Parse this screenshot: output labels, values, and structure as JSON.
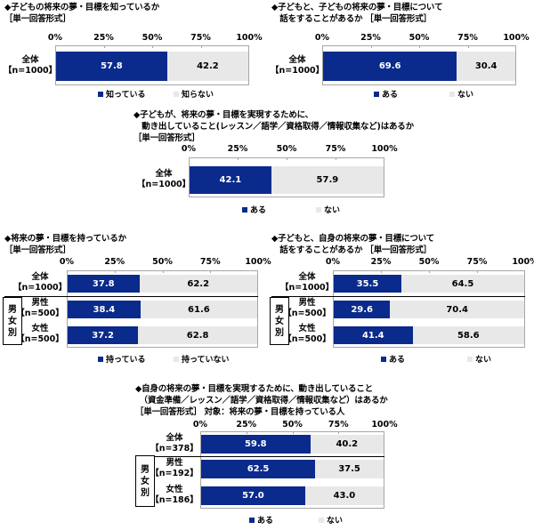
{
  "colors": {
    "series1": "#0a2a8c",
    "series2": "#e8e8e8",
    "axis": "#a6a6a6"
  },
  "axis_ticks": [
    "0%",
    "25%",
    "50%",
    "75%",
    "100%"
  ],
  "chart_data": [
    {
      "type": "bar",
      "orientation": "horizontal-stacked-100",
      "title": "◆子どもの将来の夢・目標を知っているか",
      "subtitle": "［単一回答形式］",
      "categories": [
        "全体【n=1000】"
      ],
      "series": [
        {
          "name": "知っている",
          "values": [
            57.8
          ]
        },
        {
          "name": "知らない",
          "values": [
            42.2
          ]
        }
      ],
      "xlim": [
        0,
        100
      ],
      "xticks": [
        "0%",
        "25%",
        "50%",
        "75%",
        "100%"
      ],
      "legend_position": "bottom"
    },
    {
      "type": "bar",
      "orientation": "horizontal-stacked-100",
      "title": "◆子どもと、子どもの将来の夢・目標について 話をすることがあるか",
      "subtitle": "［単一回答形式］",
      "categories": [
        "全体【n=1000】"
      ],
      "series": [
        {
          "name": "ある",
          "values": [
            69.6
          ]
        },
        {
          "name": "ない",
          "values": [
            30.4
          ]
        }
      ],
      "xlim": [
        0,
        100
      ],
      "xticks": [
        "0%",
        "25%",
        "50%",
        "75%",
        "100%"
      ],
      "legend_position": "bottom"
    },
    {
      "type": "bar",
      "orientation": "horizontal-stacked-100",
      "title": "◆子どもが、将来の夢・目標を実現するために、 動き出していること(レッスン／語学／資格取得／情報収集など)はあるか",
      "subtitle": "［単一回答形式］",
      "categories": [
        "全体【n=1000】"
      ],
      "series": [
        {
          "name": "ある",
          "values": [
            42.1
          ]
        },
        {
          "name": "ない",
          "values": [
            57.9
          ]
        }
      ],
      "xlim": [
        0,
        100
      ],
      "xticks": [
        "0%",
        "25%",
        "50%",
        "75%",
        "100%"
      ],
      "legend_position": "bottom"
    },
    {
      "type": "bar",
      "orientation": "horizontal-stacked-100",
      "title": "◆将来の夢・目標を持っているか",
      "subtitle": "［単一回答形式］",
      "categories": [
        "全体【n=1000】",
        "男性【n=500】",
        "女性【n=500】"
      ],
      "group_label": "男女別",
      "series": [
        {
          "name": "持っている",
          "values": [
            37.8,
            38.4,
            37.2
          ]
        },
        {
          "name": "持っていない",
          "values": [
            62.2,
            61.6,
            62.8
          ]
        }
      ],
      "xlim": [
        0,
        100
      ],
      "xticks": [
        "0%",
        "25%",
        "50%",
        "75%",
        "100%"
      ],
      "legend_position": "bottom"
    },
    {
      "type": "bar",
      "orientation": "horizontal-stacked-100",
      "title": "◆子どもと、自身の将来の夢・目標について 話をすることがあるか",
      "subtitle": "［単一回答形式］",
      "categories": [
        "全体【n=1000】",
        "男性【n=500】",
        "女性【n=500】"
      ],
      "group_label": "男女別",
      "series": [
        {
          "name": "ある",
          "values": [
            35.5,
            29.6,
            41.4
          ]
        },
        {
          "name": "ない",
          "values": [
            64.5,
            70.4,
            58.6
          ]
        }
      ],
      "xlim": [
        0,
        100
      ],
      "xticks": [
        "0%",
        "25%",
        "50%",
        "75%",
        "100%"
      ],
      "legend_position": "bottom"
    },
    {
      "type": "bar",
      "orientation": "horizontal-stacked-100",
      "title": "◆自身の将来の夢・目標を実現するために、動き出していること （資金準備／レッスン／語学／資格取得／情報収集など）はあるか",
      "subtitle": "［単一回答形式］ 対象：将来の夢・目標を持っている人",
      "categories": [
        "全体【n=378】",
        "男性【n=192】",
        "女性【n=186】"
      ],
      "group_label": "男女別",
      "series": [
        {
          "name": "ある",
          "values": [
            59.8,
            62.5,
            57.0
          ]
        },
        {
          "name": "ない",
          "values": [
            40.2,
            37.5,
            43.0
          ]
        }
      ],
      "xlim": [
        0,
        100
      ],
      "xticks": [
        "0%",
        "25%",
        "50%",
        "75%",
        "100%"
      ],
      "legend_position": "bottom"
    }
  ],
  "charts": [
    {
      "title_lines": [
        "◆子どもの将来の夢・目標を知っているか",
        "［単一回答形式］"
      ],
      "rows": [
        {
          "label": "全体",
          "n": "【n=1000】",
          "v1": "57.8",
          "v2": "42.2",
          "p1": 57.8
        }
      ],
      "legend": [
        "知っている",
        "知らない"
      ]
    },
    {
      "title_lines": [
        "◆子どもと、子どもの将来の夢・目標について",
        "　話をすることがあるか ［単一回答形式］"
      ],
      "rows": [
        {
          "label": "全体",
          "n": "【n=1000】",
          "v1": "69.6",
          "v2": "30.4",
          "p1": 69.6
        }
      ],
      "legend": [
        "ある",
        "ない"
      ]
    },
    {
      "title_lines": [
        "◆子どもが、将来の夢・目標を実現するために、",
        "　動き出していること(レッスン／語学／資格取得／情報収集など)はあるか",
        "［単一回答形式］"
      ],
      "rows": [
        {
          "label": "全体",
          "n": "【n=1000】",
          "v1": "42.1",
          "v2": "57.9",
          "p1": 42.1
        }
      ],
      "legend": [
        "ある",
        "ない"
      ]
    },
    {
      "title_lines": [
        "◆将来の夢・目標を持っているか",
        "［単一回答形式］"
      ],
      "group_label": [
        "男",
        "女",
        "別"
      ],
      "rows": [
        {
          "label": "全体",
          "n": "【n=1000】",
          "v1": "37.8",
          "v2": "62.2",
          "p1": 37.8
        },
        {
          "label": "男性",
          "n": "【n=500】",
          "v1": "38.4",
          "v2": "61.6",
          "p1": 38.4
        },
        {
          "label": "女性",
          "n": "【n=500】",
          "v1": "37.2",
          "v2": "62.8",
          "p1": 37.2
        }
      ],
      "legend": [
        "持っている",
        "持っていない"
      ]
    },
    {
      "title_lines": [
        "◆子どもと、自身の将来の夢・目標について",
        "　話をすることがあるか ［単一回答形式］"
      ],
      "group_label": [
        "男",
        "女",
        "別"
      ],
      "rows": [
        {
          "label": "全体",
          "n": "【n=1000】",
          "v1": "35.5",
          "v2": "64.5",
          "p1": 35.5
        },
        {
          "label": "男性",
          "n": "【n=500】",
          "v1": "29.6",
          "v2": "70.4",
          "p1": 29.6
        },
        {
          "label": "女性",
          "n": "【n=500】",
          "v1": "41.4",
          "v2": "58.6",
          "p1": 41.4
        }
      ],
      "legend": [
        "ある",
        "ない"
      ]
    },
    {
      "title_lines": [
        "◆自身の将来の夢・目標を実現するために、動き出していること",
        "　（資金準備／レッスン／語学／資格取得／情報収集など）はあるか",
        "［単一回答形式］ 対象：将来の夢・目標を持っている人"
      ],
      "group_label": [
        "男",
        "女",
        "別"
      ],
      "rows": [
        {
          "label": "全体",
          "n": "【n=378】",
          "v1": "59.8",
          "v2": "40.2",
          "p1": 59.8
        },
        {
          "label": "男性",
          "n": "【n=192】",
          "v1": "62.5",
          "v2": "37.5",
          "p1": 62.5
        },
        {
          "label": "女性",
          "n": "【n=186】",
          "v1": "57.0",
          "v2": "43.0",
          "p1": 57.0
        }
      ],
      "legend": [
        "ある",
        "ない"
      ]
    }
  ]
}
